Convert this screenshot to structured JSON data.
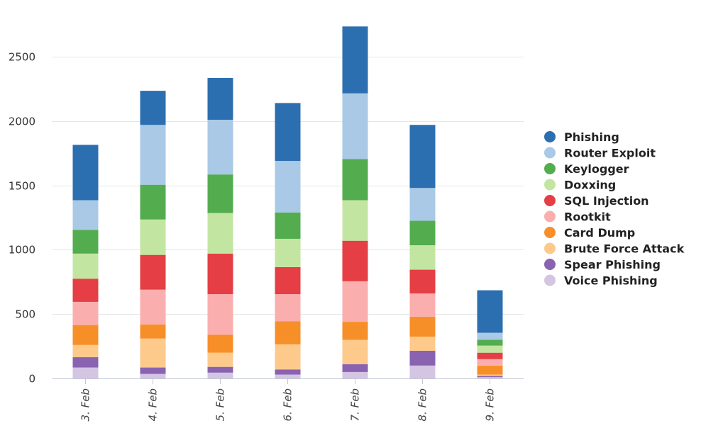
{
  "chart_data": {
    "type": "bar",
    "stacked": true,
    "categories": [
      "3. Feb",
      "4. Feb",
      "5. Feb",
      "6. Feb",
      "7. Feb",
      "8. Feb",
      "9. Feb"
    ],
    "ylim": [
      0,
      2700
    ],
    "yticks": [
      0,
      500,
      1000,
      1500,
      2000,
      2500
    ],
    "grid": true,
    "legend_position": "right",
    "series": [
      {
        "name": "Voice Phishing",
        "color": "#d4c5e3",
        "values": [
          85,
          35,
          45,
          30,
          50,
          100,
          10
        ]
      },
      {
        "name": "Spear Phishing",
        "color": "#8963b0",
        "values": [
          80,
          50,
          45,
          40,
          60,
          115,
          10
        ]
      },
      {
        "name": "Brute Force Attack",
        "color": "#fdca8c",
        "values": [
          95,
          225,
          110,
          195,
          190,
          110,
          10
        ]
      },
      {
        "name": "Card Dump",
        "color": "#f78f29",
        "values": [
          155,
          110,
          140,
          180,
          140,
          155,
          70
        ]
      },
      {
        "name": "Rootkit",
        "color": "#fbaeae",
        "values": [
          180,
          270,
          315,
          210,
          315,
          180,
          50
        ]
      },
      {
        "name": "SQL Injection",
        "color": "#e53e45",
        "values": [
          180,
          270,
          315,
          210,
          315,
          185,
          50
        ]
      },
      {
        "name": "Doxxing",
        "color": "#c2e6a1",
        "values": [
          195,
          275,
          315,
          220,
          315,
          190,
          55
        ]
      },
      {
        "name": "Keylogger",
        "color": "#53ad4f",
        "values": [
          185,
          270,
          300,
          205,
          320,
          190,
          45
        ]
      },
      {
        "name": "Router Exploit",
        "color": "#a9c9e6",
        "values": [
          230,
          465,
          425,
          400,
          510,
          255,
          55
        ]
      },
      {
        "name": "Phishing",
        "color": "#2c6fb0",
        "values": [
          430,
          265,
          325,
          450,
          520,
          490,
          330
        ]
      }
    ]
  }
}
